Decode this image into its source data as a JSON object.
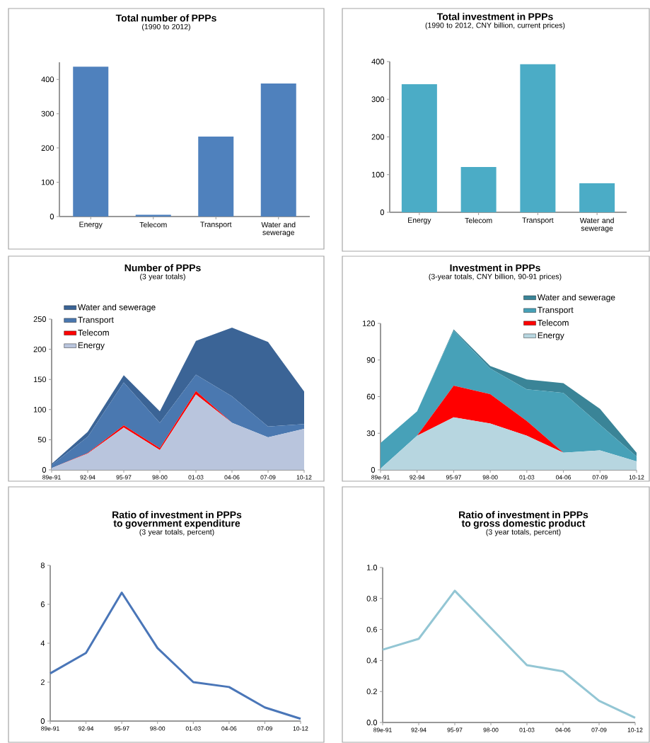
{
  "chart_data": [
    {
      "type": "bar",
      "title": "Total number of PPPs",
      "subtitle": "(1990 to 2012)",
      "categories": [
        "Energy",
        "Telecom",
        "Transport",
        "Water and sewerage"
      ],
      "values": [
        437,
        5,
        233,
        388
      ],
      "color": "#4f81bd",
      "ylim": [
        0,
        450
      ],
      "yticks": [
        0,
        100,
        200,
        300,
        400
      ]
    },
    {
      "type": "bar",
      "title": "Total investment in PPPs",
      "subtitle": "(1990 to 2012, CNY billion, current prices)",
      "categories": [
        "Energy",
        "Telecom",
        "Transport",
        "Water and sewerage"
      ],
      "values": [
        340,
        120,
        393,
        77
      ],
      "color": "#4bacc6",
      "ylim": [
        0,
        400
      ],
      "yticks": [
        0,
        100,
        200,
        300,
        400
      ]
    },
    {
      "type": "area",
      "stacked": true,
      "title": "Number of PPPs",
      "subtitle": "(3 year totals)",
      "categories": [
        "89e-91",
        "92-94",
        "95-97",
        "98-00",
        "01-03",
        "04-06",
        "07-09",
        "10-12"
      ],
      "legend": "top left",
      "ylim": [
        0,
        250
      ],
      "yticks": [
        0,
        50,
        100,
        150,
        200,
        250
      ],
      "series": [
        {
          "name": "Energy",
          "color": "#b9c5dd",
          "values": [
            3,
            27,
            70,
            33,
            125,
            78,
            54,
            68
          ]
        },
        {
          "name": "Telecom",
          "color": "#ff0000",
          "values": [
            0,
            1,
            4,
            3,
            6,
            0,
            0,
            0
          ]
        },
        {
          "name": "Transport",
          "color": "#4a78b0",
          "values": [
            5,
            27,
            71,
            42,
            27,
            44,
            18,
            8
          ]
        },
        {
          "name": "Water and sewerage",
          "color": "#3b6496",
          "values": [
            2,
            8,
            12,
            19,
            56,
            114,
            140,
            54
          ]
        }
      ]
    },
    {
      "type": "area",
      "stacked": true,
      "title": "Investment in PPPs",
      "subtitle": "(3-year totals, CNY billion, 90-91 prices)",
      "categories": [
        "89e-91",
        "92-94",
        "95-97",
        "98-00",
        "01-03",
        "04-06",
        "07-09",
        "10-12"
      ],
      "legend": "top right",
      "ylim": [
        0,
        120
      ],
      "yticks": [
        0,
        30,
        60,
        90,
        120
      ],
      "series": [
        {
          "name": "Energy",
          "color": "#b7d6e0",
          "values": [
            1,
            28,
            43,
            38,
            28,
            14,
            16,
            7
          ]
        },
        {
          "name": "Telecom",
          "color": "#ff0000",
          "values": [
            0,
            0,
            26,
            24,
            12,
            0,
            0,
            0
          ]
        },
        {
          "name": "Transport",
          "color": "#47a1b8",
          "values": [
            21,
            20,
            45,
            21,
            26,
            49,
            21,
            4
          ]
        },
        {
          "name": "Water and sewerage",
          "color": "#3a8497",
          "values": [
            0,
            0,
            1,
            2,
            8,
            8,
            13,
            3
          ]
        }
      ]
    },
    {
      "type": "line",
      "title": "Ratio of investment in PPPs to government expenditure",
      "subtitle": "(3 year totals,  percent)",
      "categories": [
        "89e-91",
        "92-94",
        "95-97",
        "98-00",
        "01-03",
        "04-06",
        "07-09",
        "10-12"
      ],
      "values": [
        2.45,
        3.5,
        6.6,
        3.75,
        2.0,
        1.75,
        0.7,
        0.12
      ],
      "color": "#4a76b8",
      "ylim": [
        0,
        8
      ],
      "yticks": [
        0,
        2,
        4,
        6,
        8
      ]
    },
    {
      "type": "line",
      "title": "Ratio of investment in PPPs to gross domestic product",
      "subtitle": "(3 year totals, percent)",
      "categories": [
        "89e-91",
        "92-94",
        "95-97",
        "98-00",
        "01-03",
        "04-06",
        "07-09",
        "10-12"
      ],
      "values": [
        0.47,
        0.54,
        0.85,
        0.61,
        0.37,
        0.33,
        0.14,
        0.03
      ],
      "color": "#93c6d4",
      "ylim": [
        0,
        1.0
      ],
      "yticks": [
        {
          "value": 0,
          "label": "0.0"
        },
        {
          "value": 0.2,
          "label": "0.2"
        },
        {
          "value": 0.4,
          "label": "0.4"
        },
        {
          "value": 0.6,
          "label": "0.6"
        },
        {
          "value": 0.8,
          "label": "0.8"
        },
        {
          "value": 1.0,
          "label": "1.0"
        }
      ]
    }
  ]
}
